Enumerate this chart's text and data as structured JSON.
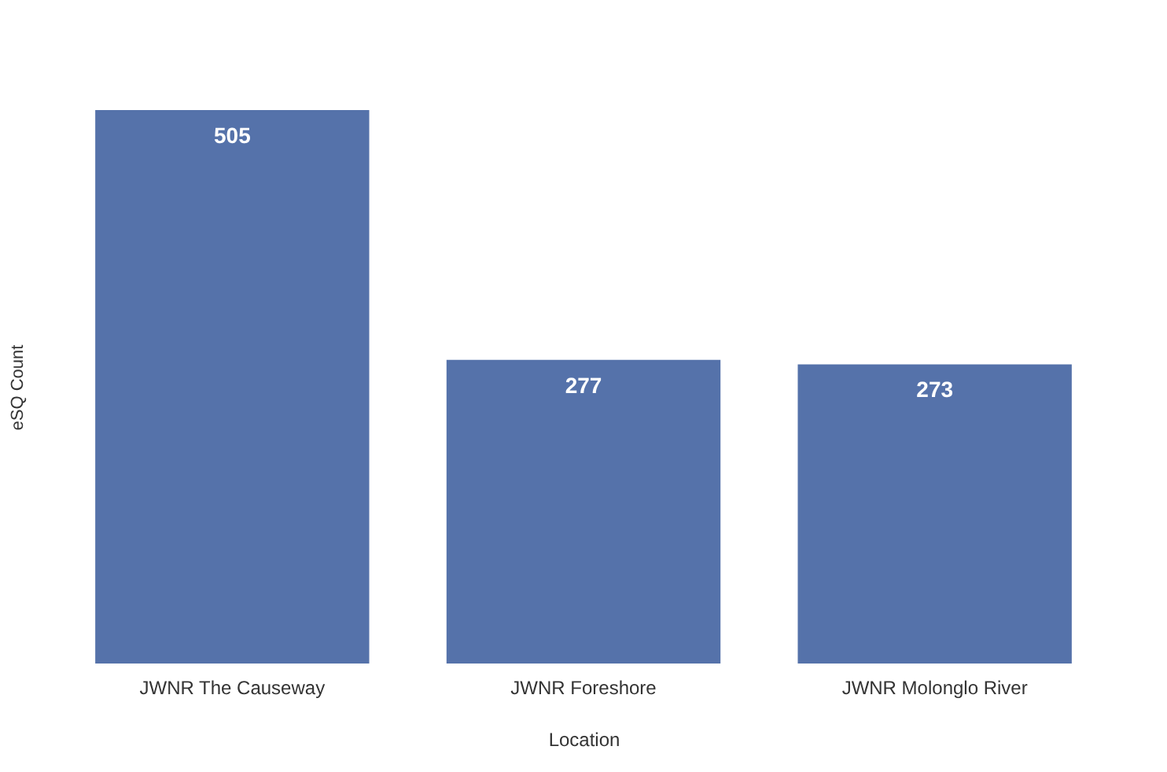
{
  "chart_data": {
    "type": "bar",
    "xlabel": "Location",
    "ylabel": "eSQ Count",
    "categories": [
      "JWNR The Causeway",
      "JWNR Foreshore",
      "JWNR Molonglo River"
    ],
    "values": [
      505,
      277,
      273
    ],
    "color": "#5572aa",
    "data_labels": true
  }
}
